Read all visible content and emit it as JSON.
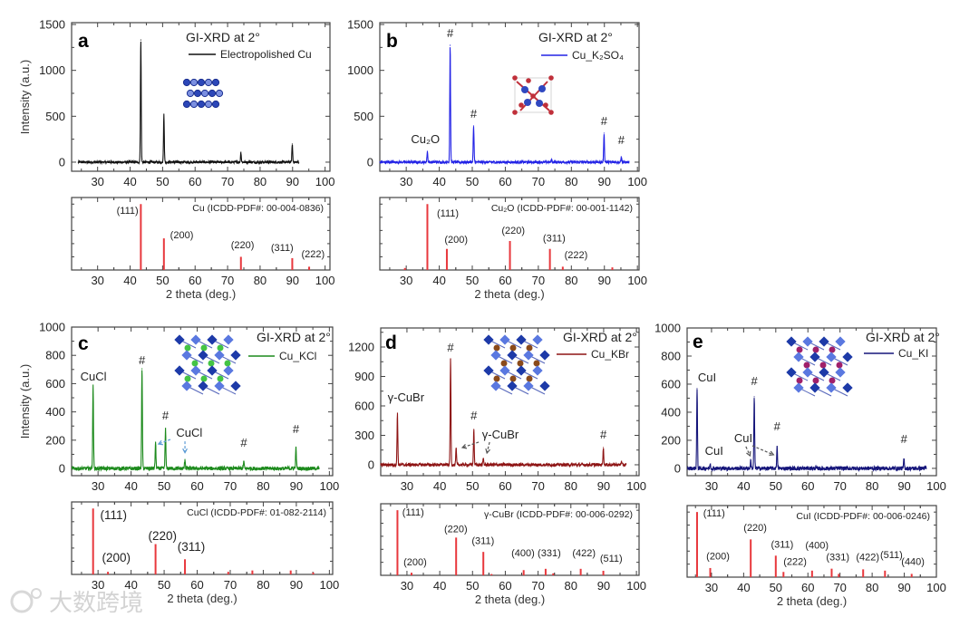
{
  "figure": {
    "watermark": "大数跨境"
  },
  "chart_data": [
    {
      "panel": "a",
      "type": "line",
      "title": "GI-XRD at 2°",
      "legend": "Electropolished Cu",
      "color": "#111111",
      "ylabel": "Intensity (a.u.)",
      "xlim": [
        22,
        101.5
      ],
      "ylim": [
        -99,
        1520
      ],
      "xticks": [
        30,
        40,
        50,
        60,
        70,
        80,
        90,
        100
      ],
      "yticks": [
        0,
        500,
        1000,
        1500
      ],
      "x_range": [
        24,
        92
      ],
      "noise": 13,
      "peaks": [
        {
          "x": 43.3,
          "y": 1332
        },
        {
          "x": 50.4,
          "y": 523
        },
        {
          "x": 74.1,
          "y": 108
        },
        {
          "x": 89.9,
          "y": 197
        }
      ],
      "annotations": [],
      "arrows": [],
      "reference": {
        "title": "Cu (ICDD-PDF#: 00-004-0836)",
        "color": "#e8383d",
        "xlabel": "2 theta (deg.)",
        "ylim": [
          0,
          110
        ],
        "lines": [
          {
            "x": 43.3,
            "h": 100
          },
          {
            "x": 50.4,
            "h": 48
          },
          {
            "x": 74.1,
            "h": 20
          },
          {
            "x": 89.9,
            "h": 18
          },
          {
            "x": 95.1,
            "h": 5
          }
        ],
        "labels": [
          {
            "text": "(111)",
            "x": 39.2,
            "y": 85
          },
          {
            "text": "(200)",
            "x": 55.9,
            "y": 48
          },
          {
            "text": "(220)",
            "x": 74.6,
            "y": 33
          },
          {
            "text": "(311)",
            "x": 86.8,
            "y": 29
          },
          {
            "text": "(222)",
            "x": 96.3,
            "y": 19
          }
        ]
      }
    },
    {
      "panel": "b",
      "type": "line",
      "title": "GI-XRD at 2°",
      "legend": "Cu_K₂SO₄",
      "color": "#2323e6",
      "ylabel": "",
      "xlim": [
        22,
        100.5
      ],
      "ylim": [
        -99,
        1520
      ],
      "xticks": [
        30,
        40,
        50,
        60,
        70,
        80,
        90,
        100
      ],
      "yticks": [
        0,
        500,
        1000,
        1500
      ],
      "x_range": [
        22,
        97.5
      ],
      "noise": 14,
      "peaks": [
        {
          "x": 36.4,
          "y": 118
        },
        {
          "x": 43.3,
          "y": 1273
        },
        {
          "x": 50.4,
          "y": 395
        },
        {
          "x": 74.0,
          "y": 30
        },
        {
          "x": 89.9,
          "y": 316
        },
        {
          "x": 95.1,
          "y": 59
        }
      ],
      "annotations": [
        {
          "text": "Cu₂O",
          "x": 35.8,
          "y": 207
        },
        {
          "text": "#",
          "x": 43.3,
          "y": 1362
        },
        {
          "text": "#",
          "x": 50.4,
          "y": 484
        },
        {
          "text": "#",
          "x": 89.9,
          "y": 405
        },
        {
          "text": "#",
          "x": 95.1,
          "y": 197
        }
      ],
      "arrows": [],
      "reference": {
        "title": "Cu₂O (ICDD-PDF#: 00-001-1142)",
        "color": "#e8383d",
        "xlabel": "2 theta (deg.)",
        "ylim": [
          0,
          110
        ],
        "lines": [
          {
            "x": 29.6,
            "h": 3
          },
          {
            "x": 36.4,
            "h": 100
          },
          {
            "x": 42.3,
            "h": 32
          },
          {
            "x": 61.4,
            "h": 44
          },
          {
            "x": 73.5,
            "h": 32
          },
          {
            "x": 77.4,
            "h": 5
          },
          {
            "x": 92.4,
            "h": 4
          }
        ],
        "labels": [
          {
            "text": "(111)",
            "x": 42.6,
            "y": 81
          },
          {
            "text": "(200)",
            "x": 45.1,
            "y": 41
          },
          {
            "text": "(220)",
            "x": 62.4,
            "y": 55
          },
          {
            "text": "(311)",
            "x": 74.8,
            "y": 43
          },
          {
            "text": "(222)",
            "x": 81.4,
            "y": 18
          }
        ]
      }
    },
    {
      "panel": "c",
      "type": "line",
      "title": "GI-XRD at 2°",
      "legend": "Cu_KCl",
      "color": "#1c8a1c",
      "ylabel": "Intensity (a.u.)",
      "xlim": [
        22,
        101
      ],
      "ylim": [
        -51,
        1000
      ],
      "xticks": [
        30,
        40,
        50,
        60,
        70,
        80,
        90,
        100
      ],
      "yticks": [
        0,
        200,
        400,
        600,
        800,
        1000
      ],
      "x_range": [
        22,
        97
      ],
      "noise": 13,
      "peaks": [
        {
          "x": 28.5,
          "y": 590
        },
        {
          "x": 43.3,
          "y": 705
        },
        {
          "x": 47.4,
          "y": 186
        },
        {
          "x": 50.4,
          "y": 282
        },
        {
          "x": 56.3,
          "y": 64
        },
        {
          "x": 74.1,
          "y": 51
        },
        {
          "x": 89.9,
          "y": 147
        }
      ],
      "annotations": [
        {
          "text": "CuCl",
          "x": 28.6,
          "y": 622
        },
        {
          "text": "#",
          "x": 43.3,
          "y": 737
        },
        {
          "text": "#",
          "x": 50.4,
          "y": 346
        },
        {
          "text": "#",
          "x": 74.1,
          "y": 154
        },
        {
          "text": "#",
          "x": 89.9,
          "y": 250
        },
        {
          "text": "CuCl",
          "x": 57.6,
          "y": 224
        }
      ],
      "arrows": [
        {
          "from": [
            51.9,
            205
          ],
          "to": [
            48.3,
            173
          ]
        },
        {
          "from": [
            56.3,
            192
          ],
          "to": [
            56.3,
            112
          ]
        }
      ],
      "reference": {
        "title": "CuCl (ICDD-PDF#: 01-082-2114)",
        "color": "#e8383d",
        "xlabel": "2 theta (deg.)",
        "ylim": [
          0,
          110
        ],
        "lines": [
          {
            "x": 28.5,
            "h": 100
          },
          {
            "x": 33.0,
            "h": 4
          },
          {
            "x": 47.4,
            "h": 46
          },
          {
            "x": 56.3,
            "h": 23
          },
          {
            "x": 69.4,
            "h": 4
          },
          {
            "x": 76.7,
            "h": 6
          },
          {
            "x": 88.3,
            "h": 6
          },
          {
            "x": 95.1,
            "h": 3
          }
        ],
        "labels": [
          {
            "text": "(111)",
            "x": 34.7,
            "y": 84
          },
          {
            "text": "(200)",
            "x": 35.5,
            "y": 19
          },
          {
            "text": "(220)",
            "x": 49.5,
            "y": 52
          },
          {
            "text": "(311)",
            "x": 58.2,
            "y": 36
          }
        ]
      }
    },
    {
      "panel": "d",
      "type": "line",
      "title": "GI-XRD at 2°",
      "legend": "Cu_KBr",
      "color": "#8e1414",
      "ylabel": "",
      "xlim": [
        22,
        100.8
      ],
      "ylim": [
        -111,
        1394
      ],
      "xticks": [
        30,
        40,
        50,
        60,
        70,
        80,
        90,
        100
      ],
      "yticks": [
        0,
        300,
        600,
        900,
        1200
      ],
      "x_range": [
        22,
        97
      ],
      "noise": 16,
      "peaks": [
        {
          "x": 27.1,
          "y": 526
        },
        {
          "x": 43.3,
          "y": 1080
        },
        {
          "x": 45.0,
          "y": 166
        },
        {
          "x": 50.4,
          "y": 360
        },
        {
          "x": 53.3,
          "y": 65
        },
        {
          "x": 89.9,
          "y": 175
        },
        {
          "x": 95.4,
          "y": 30
        }
      ],
      "annotations": [
        {
          "text": "γ-CuBr",
          "x": 29.7,
          "y": 646
        },
        {
          "text": "#",
          "x": 43.3,
          "y": 1154
        },
        {
          "text": "#",
          "x": 50.4,
          "y": 462
        },
        {
          "text": "#",
          "x": 89.9,
          "y": 268
        },
        {
          "text": "γ-CuBr",
          "x": 58.5,
          "y": 268
        }
      ],
      "arrows": [
        {
          "from": [
            51.9,
            231
          ],
          "to": [
            46.9,
            175
          ]
        },
        {
          "from": [
            55.2,
            231
          ],
          "to": [
            54.4,
            120
          ]
        }
      ],
      "reference": {
        "title": "γ-CuBr (ICDD-PDF#: 00-006-0292)",
        "color": "#e8383d",
        "xlabel": "2 theta (deg.)",
        "ylim": [
          0,
          110
        ],
        "lines": [
          {
            "x": 27.1,
            "h": 100
          },
          {
            "x": 31.4,
            "h": 4
          },
          {
            "x": 45.0,
            "h": 58
          },
          {
            "x": 53.3,
            "h": 36
          },
          {
            "x": 55.8,
            "h": 2
          },
          {
            "x": 65.6,
            "h": 8
          },
          {
            "x": 72.3,
            "h": 10
          },
          {
            "x": 74.6,
            "h": 3
          },
          {
            "x": 83.0,
            "h": 10
          },
          {
            "x": 89.9,
            "h": 7
          }
        ],
        "labels": [
          {
            "text": "(111)",
            "x": 31.9,
            "y": 92
          },
          {
            "text": "(200)",
            "x": 32.5,
            "y": 15
          },
          {
            "text": "(220)",
            "x": 44.9,
            "y": 66
          },
          {
            "text": "(311)",
            "x": 53.2,
            "y": 48
          },
          {
            "text": "(400)",
            "x": 65.4,
            "y": 29
          },
          {
            "text": "(331)",
            "x": 73.4,
            "y": 29
          },
          {
            "text": "(422)",
            "x": 84.0,
            "y": 29
          },
          {
            "text": "(511)",
            "x": 92.3,
            "y": 21
          }
        ]
      }
    },
    {
      "panel": "e",
      "type": "line",
      "title": "GI-XRD at 2°",
      "legend": "Cu_KI",
      "color": "#15157a",
      "ylabel": "",
      "xlim": [
        22.4,
        100
      ],
      "ylim": [
        -52,
        1000
      ],
      "xticks": [
        30,
        40,
        50,
        60,
        70,
        80,
        90,
        100
      ],
      "yticks": [
        0,
        200,
        400,
        600,
        800,
        1000
      ],
      "x_range": [
        22.5,
        97
      ],
      "noise": 14,
      "peaks": [
        {
          "x": 25.5,
          "y": 568
        },
        {
          "x": 29.6,
          "y": 30
        },
        {
          "x": 42.2,
          "y": 55
        },
        {
          "x": 43.3,
          "y": 510
        },
        {
          "x": 50.4,
          "y": 155
        },
        {
          "x": 89.9,
          "y": 65
        }
      ],
      "annotations": [
        {
          "text": "CuI",
          "x": 28.6,
          "y": 619
        },
        {
          "text": "CuI",
          "x": 30.8,
          "y": 97
        },
        {
          "text": "#",
          "x": 43.3,
          "y": 594
        },
        {
          "text": "#",
          "x": 50.4,
          "y": 271
        },
        {
          "text": "#",
          "x": 89.9,
          "y": 181
        },
        {
          "text": "CuI",
          "x": 39.9,
          "y": 187
        }
      ],
      "arrows": [
        {
          "from": [
            40.7,
            155
          ],
          "to": [
            42.0,
            90
          ]
        },
        {
          "from": [
            42.7,
            161
          ],
          "to": [
            49.3,
            97
          ]
        }
      ],
      "reference": {
        "title": "CuI (ICDD-PDF#: 00-006-0246)",
        "color": "#e8383d",
        "xlabel": "2 theta (deg.)",
        "ylim": [
          0,
          110
        ],
        "lines": [
          {
            "x": 25.5,
            "h": 100
          },
          {
            "x": 29.6,
            "h": 14
          },
          {
            "x": 42.2,
            "h": 58
          },
          {
            "x": 50.0,
            "h": 33
          },
          {
            "x": 52.4,
            "h": 8
          },
          {
            "x": 61.3,
            "h": 10
          },
          {
            "x": 67.4,
            "h": 13
          },
          {
            "x": 69.6,
            "h": 5
          },
          {
            "x": 77.2,
            "h": 12
          },
          {
            "x": 84.0,
            "h": 10
          },
          {
            "x": 92.3,
            "h": 5
          }
        ],
        "labels": [
          {
            "text": "(111)",
            "x": 30.8,
            "y": 93
          },
          {
            "text": "(200)",
            "x": 32.0,
            "y": 27
          },
          {
            "text": "(220)",
            "x": 43.6,
            "y": 71
          },
          {
            "text": "(311)",
            "x": 52.0,
            "y": 45
          },
          {
            "text": "(222)",
            "x": 56.0,
            "y": 19
          },
          {
            "text": "(400)",
            "x": 62.8,
            "y": 44
          },
          {
            "text": "(331)",
            "x": 69.3,
            "y": 26
          },
          {
            "text": "(422)",
            "x": 78.6,
            "y": 26
          },
          {
            "text": "(511)",
            "x": 86.0,
            "y": 29
          },
          {
            "text": "(440)",
            "x": 92.7,
            "y": 19
          }
        ]
      }
    }
  ]
}
